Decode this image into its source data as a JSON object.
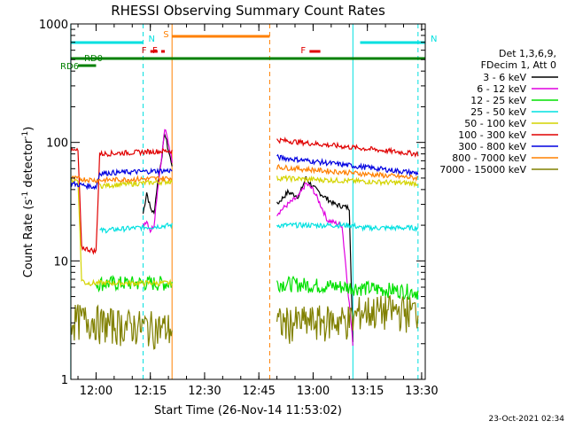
{
  "chart_data": {
    "type": "line",
    "title": "RHESSI Observing Summary Count Rates",
    "xlabel": "Start Time (26-Nov-14 11:53:02)",
    "ylabel": "Count Rate (s⁻¹ detector⁻¹)",
    "y_scale": "log",
    "ylim": [
      1,
      1000
    ],
    "xlim": [
      "11:53:02",
      "13:31:00"
    ],
    "x_ticks": [
      "12:00",
      "12:15",
      "12:30",
      "12:45",
      "13:00",
      "13:15",
      "13:30"
    ],
    "y_ticks": [
      "1",
      "10",
      "100",
      "1000"
    ],
    "footer_date": "23-Oct-2021 02:34",
    "legend": {
      "header": [
        "Det 1,3,6,9,",
        "FDecim 1, Att 0"
      ],
      "position": "right",
      "entries": [
        {
          "label": "3 - 6 keV",
          "color": "#000000"
        },
        {
          "label": "6 - 12 keV",
          "color": "#e000e0"
        },
        {
          "label": "12 - 25 keV",
          "color": "#00e000"
        },
        {
          "label": "25 - 50 keV",
          "color": "#00e0e0"
        },
        {
          "label": "50 - 100 keV",
          "color": "#d4d400"
        },
        {
          "label": "100 - 300 keV",
          "color": "#e00000"
        },
        {
          "label": "300 - 800 keV",
          "color": "#0000e0"
        },
        {
          "label": "800 - 7000 keV",
          "color": "#ff8000"
        },
        {
          "label": "7000 - 15000 keV",
          "color": "#808000"
        }
      ]
    },
    "flags": [
      {
        "label": "N",
        "color": "#00e0e0",
        "start": "11:53",
        "end": "12:13"
      },
      {
        "label": "N",
        "color": "#00e0e0",
        "start": "13:13",
        "end": "13:31"
      },
      {
        "label": "S",
        "color": "#ff8000",
        "start": "12:21",
        "end": "12:48"
      },
      {
        "label": "F",
        "color": "#e00000",
        "start": "12:15",
        "end": "12:17"
      },
      {
        "label": "F",
        "color": "#e00000",
        "start": "12:18",
        "end": "12:19"
      },
      {
        "label": "F",
        "color": "#e00000",
        "start": "12:59",
        "end": "13:02"
      },
      {
        "label": "RD0",
        "color": "#008000",
        "start": "11:53",
        "end": "13:31"
      },
      {
        "label": "RD6",
        "color": "#008000",
        "start": "11:55",
        "end": "12:00"
      }
    ],
    "vlines": [
      {
        "time": "11:53",
        "color": "#00e0e0",
        "style": "solid"
      },
      {
        "time": "12:13",
        "color": "#00e0e0",
        "style": "dashed"
      },
      {
        "time": "12:21",
        "color": "#ff8000",
        "style": "solid"
      },
      {
        "time": "12:48",
        "color": "#ff8000",
        "style": "dashed"
      },
      {
        "time": "13:11",
        "color": "#00e0e0",
        "style": "solid"
      },
      {
        "time": "13:29",
        "color": "#00e0e0",
        "style": "dashed"
      }
    ],
    "series": [
      {
        "name": "3 - 6 keV",
        "color": "#000000",
        "segments": [
          {
            "x": [
              "12:13",
              "12:14",
              "12:15",
              "12:16",
              "12:17",
              "12:18",
              "12:19",
              "12:20",
              "12:21"
            ],
            "y": [
              25,
              38,
              28,
              25,
              45,
              70,
              120,
              85,
              65
            ]
          },
          {
            "x": [
              "12:50",
              "12:53",
              "12:56",
              "12:58",
              "13:00",
              "13:03",
              "13:06",
              "13:10",
              "13:11"
            ],
            "y": [
              30,
              38,
              35,
              50,
              42,
              35,
              30,
              28,
              2
            ]
          }
        ]
      },
      {
        "name": "6 - 12 keV",
        "color": "#e000e0",
        "segments": [
          {
            "x": [
              "12:13",
              "12:14",
              "12:15",
              "12:16",
              "12:17",
              "12:18",
              "12:19",
              "12:20",
              "12:21"
            ],
            "y": [
              20,
              22,
              18,
              20,
              40,
              70,
              130,
              100,
              70
            ]
          },
          {
            "x": [
              "12:50",
              "12:53",
              "12:56",
              "12:58",
              "13:00",
              "13:02",
              "13:04",
              "13:08",
              "13:11"
            ],
            "y": [
              25,
              30,
              35,
              45,
              40,
              30,
              22,
              20,
              2
            ]
          }
        ]
      },
      {
        "name": "12 - 25 keV",
        "color": "#00e000",
        "segments": [
          {
            "x": [
              "12:00",
              "12:21"
            ],
            "y": [
              6.5,
              6.5
            ]
          },
          {
            "x": [
              "12:50",
              "13:11",
              "13:29"
            ],
            "y": [
              6.5,
              6.0,
              5.5
            ]
          }
        ]
      },
      {
        "name": "25 - 50 keV",
        "color": "#00e0e0",
        "segments": [
          {
            "x": [
              "12:01",
              "12:21"
            ],
            "y": [
              18,
              20
            ]
          },
          {
            "x": [
              "12:50",
              "13:11",
              "13:13",
              "13:29"
            ],
            "y": [
              20,
              20,
              19,
              19
            ]
          }
        ]
      },
      {
        "name": "50 - 100 keV",
        "color": "#d4d400",
        "segments": [
          {
            "x": [
              "11:53",
              "11:55",
              "11:56",
              "11:57",
              "12:21"
            ],
            "y": [
              48,
              48,
              7,
              6.5,
              6.5
            ]
          },
          {
            "x": [
              "12:01",
              "12:21"
            ],
            "y": [
              43,
              47
            ]
          },
          {
            "x": [
              "12:50",
              "13:29"
            ],
            "y": [
              50,
              45
            ]
          }
        ]
      },
      {
        "name": "100 - 300 keV",
        "color": "#e00000",
        "segments": [
          {
            "x": [
              "11:53",
              "11:55",
              "11:56",
              "12:00",
              "12:01",
              "12:21"
            ],
            "y": [
              85,
              85,
              13,
              12,
              80,
              85
            ]
          },
          {
            "x": [
              "12:50",
              "13:29"
            ],
            "y": [
              105,
              80
            ]
          }
        ]
      },
      {
        "name": "300 - 800 keV",
        "color": "#0000e0",
        "segments": [
          {
            "x": [
              "11:53",
              "12:00",
              "12:01",
              "12:21"
            ],
            "y": [
              45,
              42,
              55,
              58
            ]
          },
          {
            "x": [
              "12:50",
              "13:29"
            ],
            "y": [
              75,
              55
            ]
          }
        ]
      },
      {
        "name": "800 - 7000 keV",
        "color": "#ff8000",
        "segments": [
          {
            "x": [
              "11:53",
              "12:00",
              "12:01",
              "12:21"
            ],
            "y": [
              50,
              48,
              48,
              50
            ]
          },
          {
            "x": [
              "12:50",
              "13:29"
            ],
            "y": [
              62,
              50
            ]
          }
        ]
      },
      {
        "name": "7000 - 15000 keV",
        "color": "#808000",
        "segments": [
          {
            "x": [
              "11:53",
              "12:00",
              "12:01",
              "12:21"
            ],
            "y": [
              3.2,
              3.2,
              3.0,
              2.7
            ]
          },
          {
            "x": [
              "12:50",
              "13:11",
              "13:13",
              "13:29"
            ],
            "y": [
              3.0,
              3.2,
              3.8,
              3.8
            ]
          }
        ]
      }
    ]
  }
}
